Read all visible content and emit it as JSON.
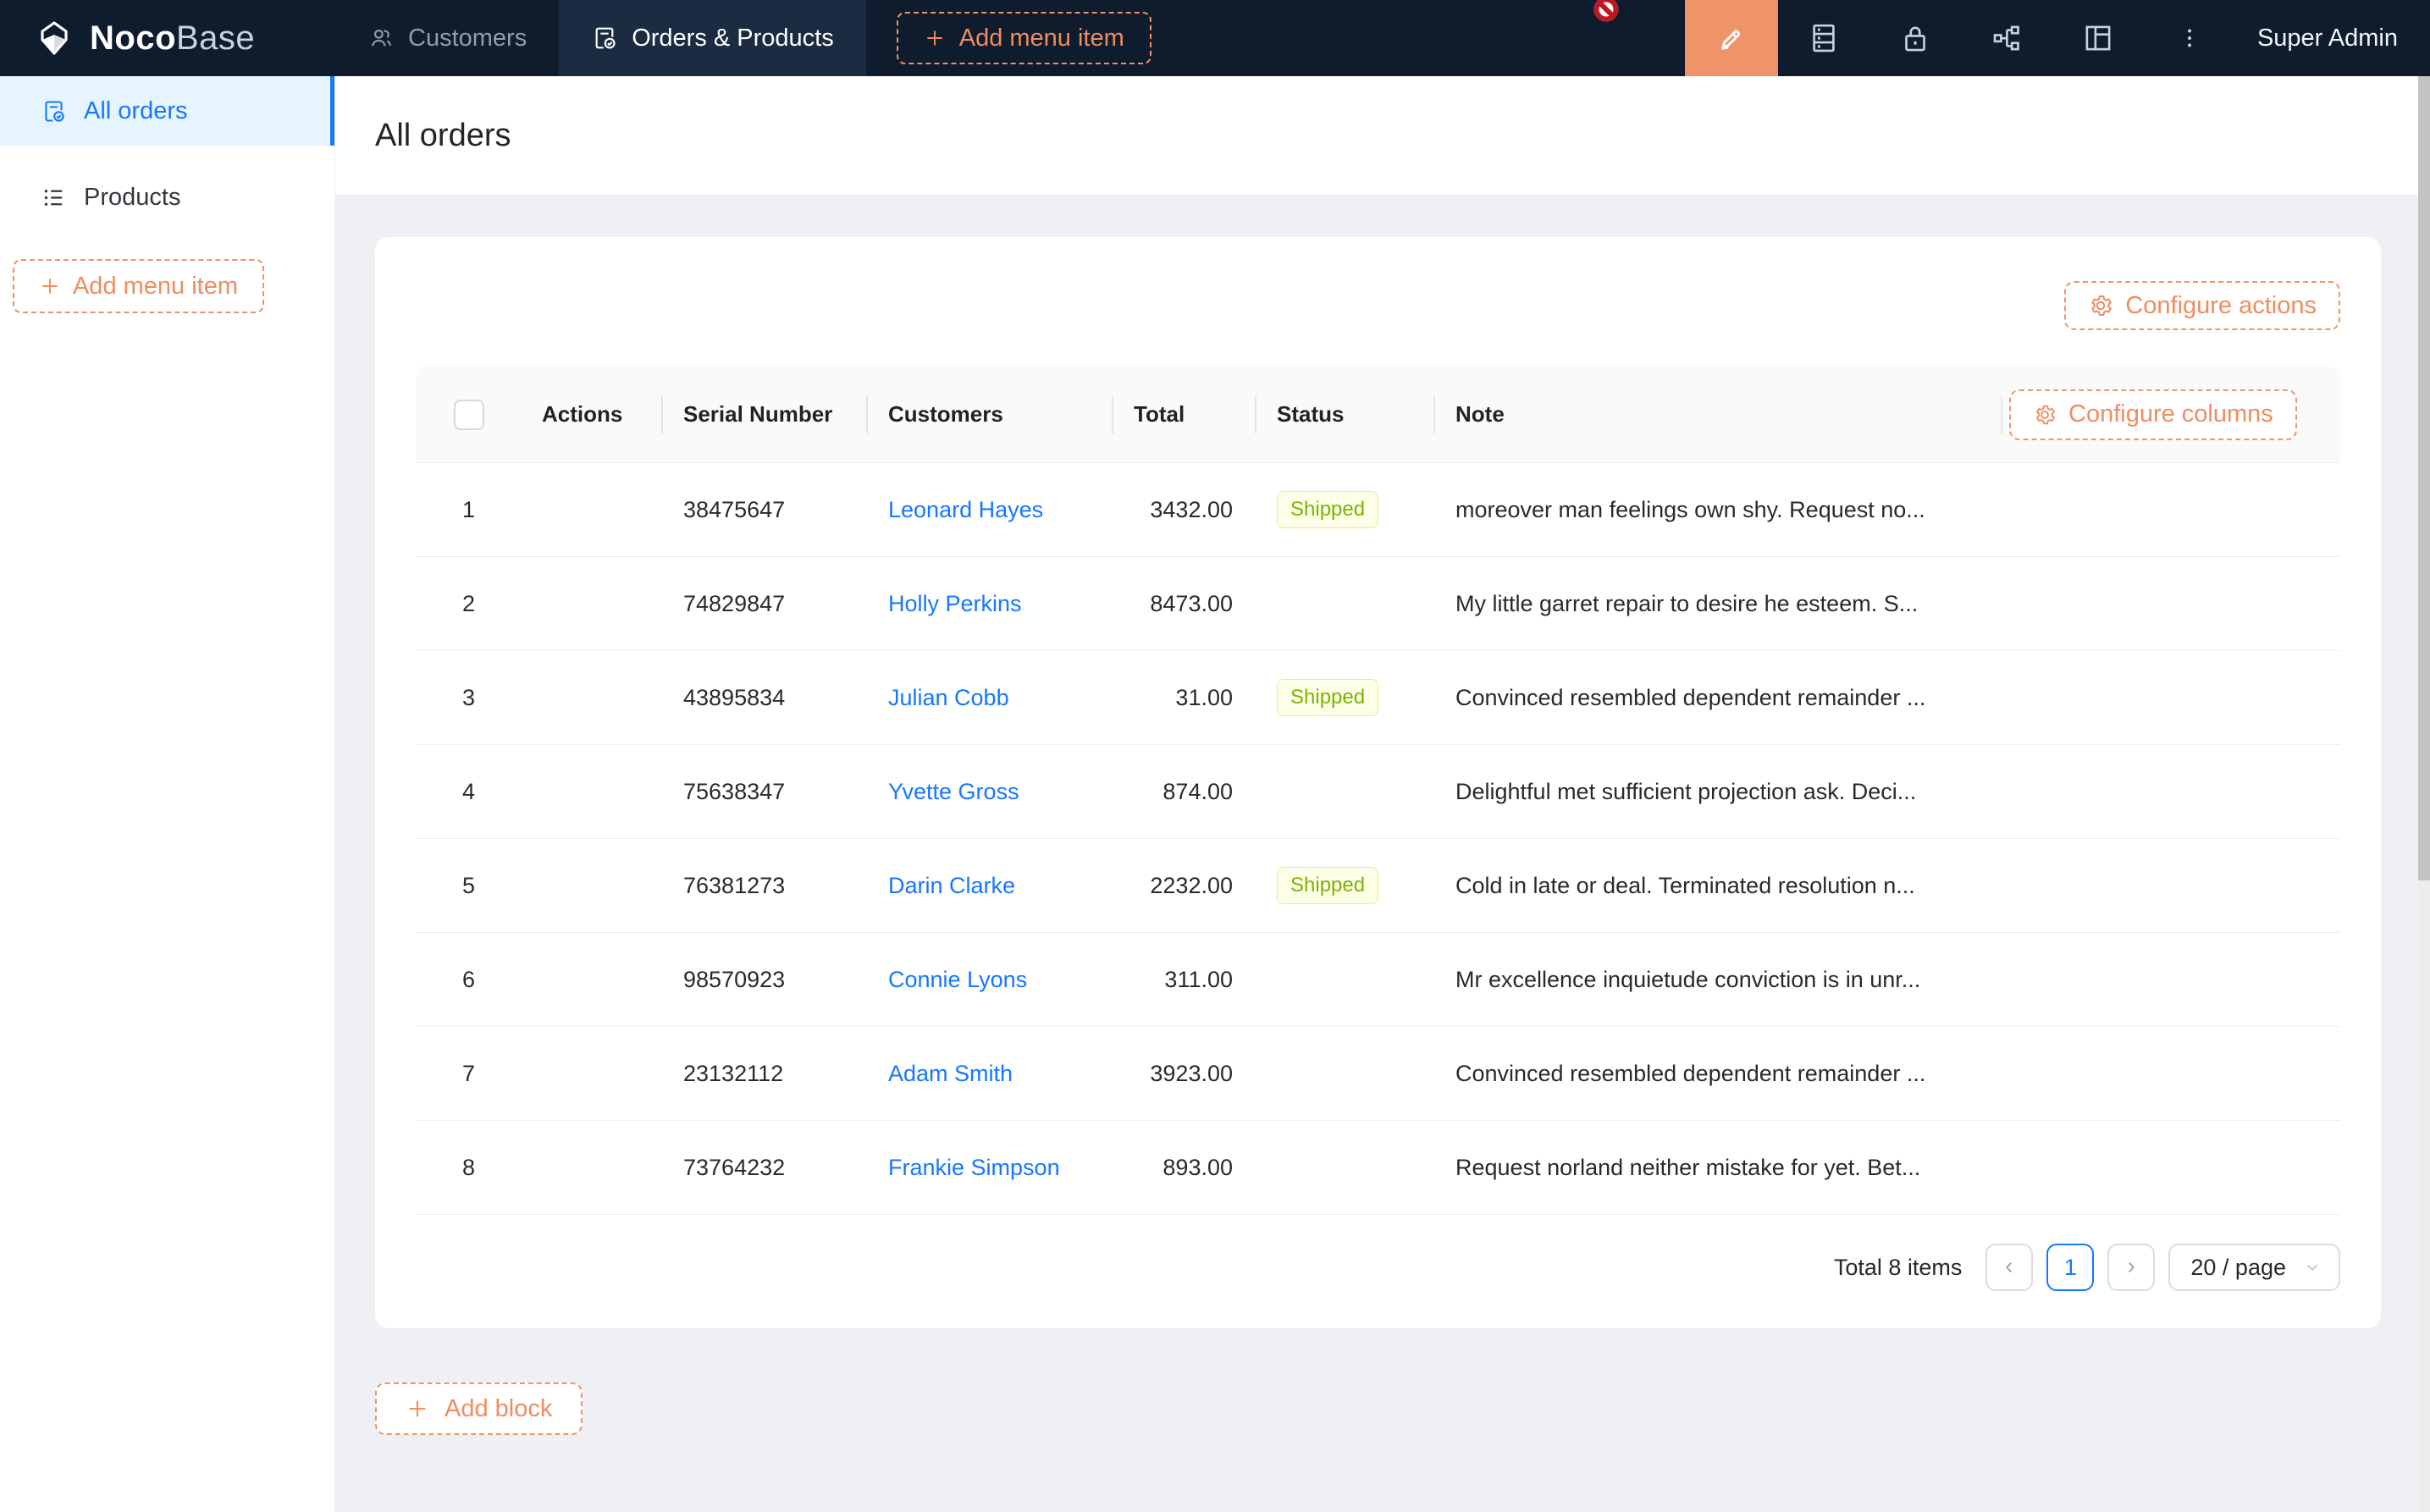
{
  "navbar": {
    "brand": {
      "bold": "Noco",
      "light": "Base"
    },
    "tabs": [
      {
        "label": "Customers",
        "icon": "users-icon"
      },
      {
        "label": "Orders & Products",
        "icon": "file-check-icon"
      }
    ],
    "add_menu_item": "Add menu item",
    "icons": [
      "highlighter-icon",
      "database-icon",
      "lock-icon",
      "apartment-icon",
      "layout-icon",
      "ellipsis-icon"
    ],
    "user": "Super Admin"
  },
  "sidebar": {
    "items": [
      {
        "label": "All orders",
        "icon": "file-check-icon",
        "active": true
      },
      {
        "label": "Products",
        "icon": "list-icon",
        "active": false
      }
    ],
    "add_menu_item": "Add menu item"
  },
  "page": {
    "title": "All orders"
  },
  "toolbar": {
    "configure_actions": "Configure actions"
  },
  "table": {
    "configure_columns": "Configure columns",
    "columns": [
      "Actions",
      "Serial Number",
      "Customers",
      "Total",
      "Status",
      "Note"
    ],
    "rows": [
      {
        "index": "1",
        "serial": "38475647",
        "customer": "Leonard Hayes",
        "total": "3432.00",
        "status": "Shipped",
        "note": "moreover man feelings own shy. Request no..."
      },
      {
        "index": "2",
        "serial": "74829847",
        "customer": "Holly Perkins",
        "total": "8473.00",
        "status": "",
        "note": "My little garret repair to desire he esteem. S..."
      },
      {
        "index": "3",
        "serial": "43895834",
        "customer": "Julian Cobb",
        "total": "31.00",
        "status": "Shipped",
        "note": "Convinced resembled dependent remainder ..."
      },
      {
        "index": "4",
        "serial": "75638347",
        "customer": "Yvette Gross",
        "total": "874.00",
        "status": "",
        "note": "Delightful met sufficient projection ask. Deci..."
      },
      {
        "index": "5",
        "serial": "76381273",
        "customer": "Darin Clarke",
        "total": "2232.00",
        "status": "Shipped",
        "note": "Cold in late or deal. Terminated resolution n..."
      },
      {
        "index": "6",
        "serial": "98570923",
        "customer": "Connie Lyons",
        "total": "311.00",
        "status": "",
        "note": "Mr excellence inquietude conviction is in unr..."
      },
      {
        "index": "7",
        "serial": "23132112",
        "customer": "Adam Smith",
        "total": "3923.00",
        "status": "",
        "note": "Convinced resembled dependent remainder ..."
      },
      {
        "index": "8",
        "serial": "73764232",
        "customer": "Frankie Simpson",
        "total": "893.00",
        "status": "",
        "note": "Request norland neither mistake for yet. Bet..."
      }
    ]
  },
  "pagination": {
    "total": "Total 8 items",
    "page": "1",
    "page_size": "20 / page"
  },
  "footer": {
    "add_block": "Add block"
  },
  "colors": {
    "accent_orange": "#f08c5f",
    "navbar_bg": "#0e1c2e",
    "link_blue": "#1677ff",
    "sidebar_active_bg": "#e6f4ff",
    "tag_bg": "#fcffe6",
    "tag_border": "#eaff8f",
    "tag_text": "#7cb305"
  }
}
